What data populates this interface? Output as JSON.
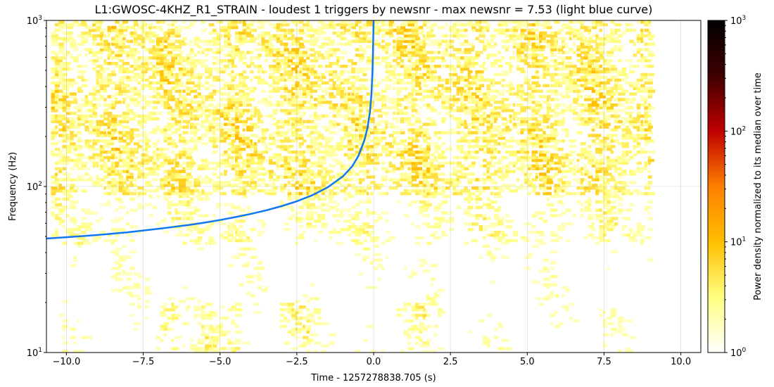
{
  "chart_data": {
    "type": "heatmap",
    "title": "L1:GWOSC-4KHZ_R1_STRAIN - loudest 1 triggers by newsnr - max newsnr = 7.53 (light blue curve)",
    "xlabel": "Time - 1257278838.705 (s)",
    "ylabel": "Frequency (Hz)",
    "xlim": [
      -10.65,
      10.65
    ],
    "ylim": [
      10,
      1000
    ],
    "yscale": "log",
    "grid": true,
    "x_ticks": [
      -10.0,
      -7.5,
      -5.0,
      -2.5,
      0.0,
      2.5,
      5.0,
      7.5,
      10.0
    ],
    "x_tick_labels": [
      "−10.0",
      "−7.5",
      "−5.0",
      "−2.5",
      "0.0",
      "2.5",
      "5.0",
      "7.5",
      "10.0"
    ],
    "y_ticks": [
      {
        "value": 10,
        "base": "10",
        "exp": "1"
      },
      {
        "value": 100,
        "base": "10",
        "exp": "2"
      },
      {
        "value": 1000,
        "base": "10",
        "exp": "3"
      }
    ],
    "heatmap": {
      "time_range": [
        -10.5,
        9.05
      ],
      "frequency_range": [
        10,
        1000
      ],
      "description_colormap": "afmhot_r"
    },
    "colorbar": {
      "label": "Power density normalized to its median over time",
      "scale": "log",
      "range": [
        1,
        1000
      ],
      "ticks": [
        {
          "value": 1,
          "base": "10",
          "exp": "0"
        },
        {
          "value": 10,
          "base": "10",
          "exp": "1"
        },
        {
          "value": 100,
          "base": "10",
          "exp": "2"
        },
        {
          "value": 1000,
          "base": "10",
          "exp": "3"
        }
      ],
      "colormap_stops": [
        "#ffffff",
        "#ffff80",
        "#ffbf00",
        "#ff8000",
        "#c00000",
        "#400000",
        "#000000"
      ]
    },
    "series": [
      {
        "color": "#1177ee",
        "points": [
          [
            -10.65,
            48.6
          ],
          [
            -10.0,
            49.5
          ],
          [
            -9.0,
            51.0
          ],
          [
            -8.0,
            53.0
          ],
          [
            -7.5,
            54.3
          ],
          [
            -7.0,
            55.6
          ],
          [
            -6.5,
            57.1
          ],
          [
            -6.0,
            58.7
          ],
          [
            -5.5,
            60.6
          ],
          [
            -5.0,
            62.8
          ],
          [
            -4.5,
            65.4
          ],
          [
            -4.0,
            68.3
          ],
          [
            -3.5,
            71.8
          ],
          [
            -3.0,
            76.1
          ],
          [
            -2.5,
            81.4
          ],
          [
            -2.0,
            88.5
          ],
          [
            -1.5,
            98.7
          ],
          [
            -1.0,
            115.0
          ],
          [
            -0.7,
            132.0
          ],
          [
            -0.5,
            152.0
          ],
          [
            -0.3,
            190.0
          ],
          [
            -0.2,
            225.0
          ],
          [
            -0.12,
            280.0
          ],
          [
            -0.07,
            360.0
          ],
          [
            -0.04,
            480.0
          ],
          [
            -0.02,
            650.0
          ],
          [
            -0.01,
            820.0
          ],
          [
            0.0,
            1000.0
          ]
        ]
      }
    ]
  }
}
